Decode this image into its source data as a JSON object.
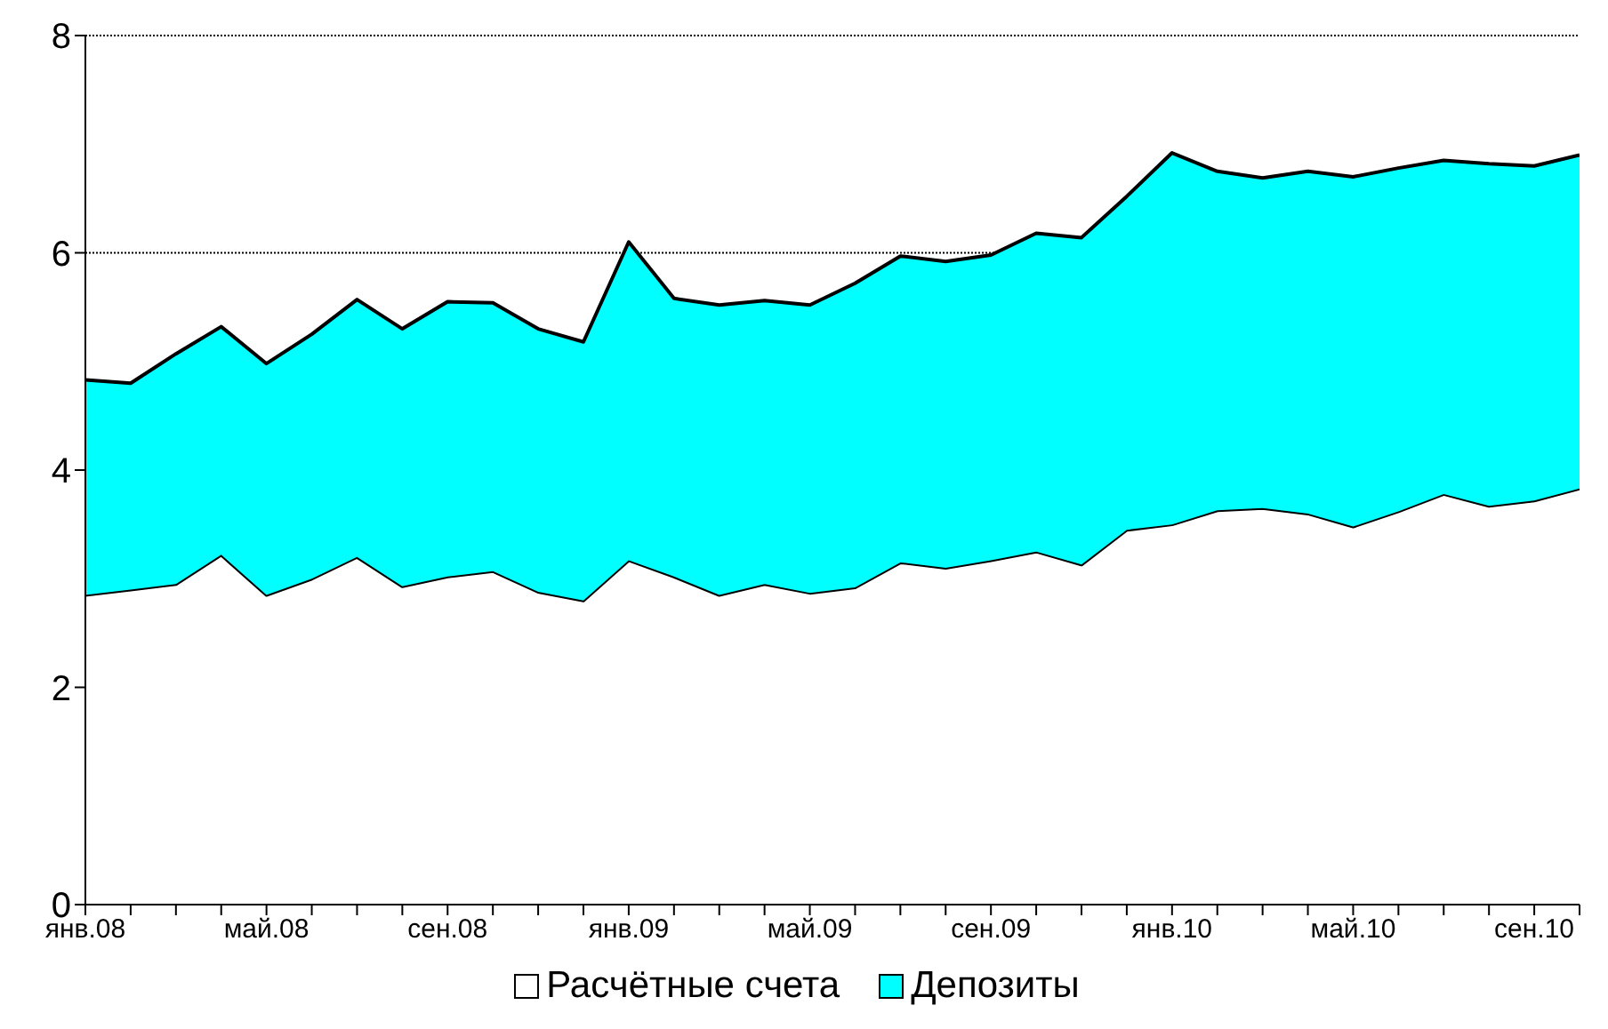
{
  "chart_data": {
    "type": "area",
    "stacked": true,
    "categories": [
      "янв.08",
      null,
      null,
      null,
      "май.08",
      null,
      null,
      null,
      "сен.08",
      null,
      null,
      null,
      "янв.09",
      null,
      null,
      null,
      "май.09",
      null,
      null,
      null,
      "сен.09",
      null,
      null,
      null,
      "янв.10",
      null,
      null,
      null,
      "май.10",
      null,
      null,
      null,
      "сен.10",
      null
    ],
    "series": [
      {
        "name": "Расчётные счета",
        "color": "#ffffff",
        "values": [
          2.85,
          2.9,
          2.95,
          3.22,
          2.85,
          3.0,
          3.2,
          2.93,
          3.02,
          3.07,
          2.88,
          2.8,
          3.17,
          3.02,
          2.85,
          2.95,
          2.87,
          2.92,
          3.15,
          3.1,
          3.17,
          3.25,
          3.13,
          3.45,
          3.5,
          3.63,
          3.65,
          3.6,
          3.48,
          3.62,
          3.78,
          3.67,
          3.72,
          3.83
        ]
      },
      {
        "name": "Депозиты",
        "color": "#00ffff",
        "values": [
          1.98,
          1.9,
          2.12,
          2.1,
          2.13,
          2.25,
          2.37,
          2.37,
          2.53,
          2.47,
          2.42,
          2.38,
          2.93,
          2.56,
          2.67,
          2.61,
          2.65,
          2.8,
          2.82,
          2.82,
          2.81,
          2.93,
          3.01,
          3.07,
          3.42,
          3.12,
          3.04,
          3.15,
          3.22,
          3.16,
          3.07,
          3.15,
          3.08,
          3.07
        ]
      }
    ],
    "ylim": [
      0,
      8
    ],
    "yticks": [
      0,
      2,
      4,
      6,
      8
    ],
    "grid": "y",
    "legend": "bottom"
  }
}
